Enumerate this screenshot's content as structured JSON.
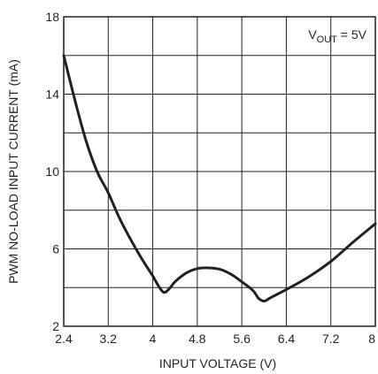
{
  "chart_data": {
    "type": "line",
    "title": "",
    "xlabel": "INPUT VOLTAGE (V)",
    "ylabel": "PWM NO-LOAD INPUT CURRENT (mA)",
    "xlim": [
      2.4,
      8
    ],
    "ylim": [
      2,
      18
    ],
    "x_ticks": [
      2.4,
      3.2,
      4,
      4.8,
      5.6,
      6.4,
      7.2,
      8
    ],
    "x_tick_labels": [
      "2.4",
      "3.2",
      "4",
      "4.8",
      "5.6",
      "6.4",
      "7.2",
      "8"
    ],
    "y_ticks": [
      2,
      6,
      10,
      14,
      18
    ],
    "y_tick_labels": [
      "2",
      "6",
      "10",
      "14",
      "18"
    ],
    "grid": true,
    "annotation": {
      "main": "V",
      "sub": "OUT",
      "rest": " = 5V"
    },
    "series": [
      {
        "color": "#231f20",
        "x": [
          2.4,
          2.6,
          2.8,
          3.0,
          3.2,
          3.4,
          3.6,
          3.8,
          4.0,
          4.1,
          4.2,
          4.3,
          4.4,
          4.6,
          4.8,
          5.0,
          5.2,
          5.4,
          5.6,
          5.8,
          5.9,
          6.0,
          6.1,
          6.2,
          6.4,
          6.8,
          7.2,
          7.6,
          8.0
        ],
        "y": [
          16.0,
          13.7,
          11.6,
          10.0,
          8.9,
          7.6,
          6.5,
          5.5,
          4.6,
          4.1,
          3.75,
          3.95,
          4.3,
          4.75,
          4.98,
          5.02,
          4.95,
          4.7,
          4.3,
          3.85,
          3.45,
          3.3,
          3.45,
          3.6,
          3.9,
          4.55,
          5.35,
          6.35,
          7.3
        ]
      }
    ]
  }
}
